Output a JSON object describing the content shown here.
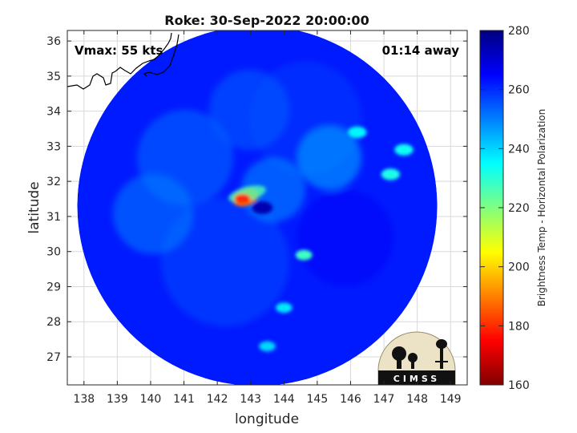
{
  "chart_data": {
    "type": "heatmap",
    "title": "Roke: 30-Sep-2022 20:00:00",
    "xlabel": "longitude",
    "ylabel": "latitude",
    "xlim": [
      137.5,
      149.5
    ],
    "ylim": [
      26.2,
      36.3
    ],
    "xticks": [
      "138",
      "139",
      "140",
      "141",
      "142",
      "143",
      "144",
      "145",
      "146",
      "147",
      "148",
      "149"
    ],
    "yticks": [
      "27",
      "28",
      "29",
      "30",
      "31",
      "32",
      "33",
      "34",
      "35",
      "36"
    ],
    "grid": true,
    "annotations": {
      "vmax": "Vmax: 55 kts",
      "time_offset": "01:14 away"
    },
    "colorbar": {
      "label": "Brightness Temp - Horizontal Polarization",
      "min": 160,
      "max": 280,
      "ticks": [
        "280",
        "260",
        "240",
        "220",
        "200",
        "180",
        "160"
      ],
      "colormap": [
        "#000080",
        "#0000ff",
        "#0080ff",
        "#00ffff",
        "#80ff80",
        "#ffff00",
        "#ff8000",
        "#ff0000",
        "#800000"
      ]
    },
    "swath": {
      "center": [
        143.2,
        31.3
      ],
      "radius_deg": 5.4,
      "background_temp": 262
    },
    "features": [
      {
        "name": "storm eye",
        "lon": 143.35,
        "lat": 31.25,
        "temp": 274
      },
      {
        "name": "eyewall convection",
        "lon": 142.85,
        "lat": 31.55,
        "temp": 188
      },
      {
        "name": "rainband",
        "lon": 144.6,
        "lat": 29.9,
        "temp": 228
      },
      {
        "name": "rainband",
        "lon": 144.0,
        "lat": 28.4,
        "temp": 238
      },
      {
        "name": "rainband",
        "lon": 143.5,
        "lat": 27.3,
        "temp": 240
      },
      {
        "name": "cloud band",
        "lon": 147.2,
        "lat": 32.2,
        "temp": 232
      },
      {
        "name": "cloud band",
        "lon": 147.6,
        "lat": 32.9,
        "temp": 234
      },
      {
        "name": "cloud band",
        "lon": 146.2,
        "lat": 33.4,
        "temp": 236
      }
    ],
    "logo": "CIMSS"
  }
}
